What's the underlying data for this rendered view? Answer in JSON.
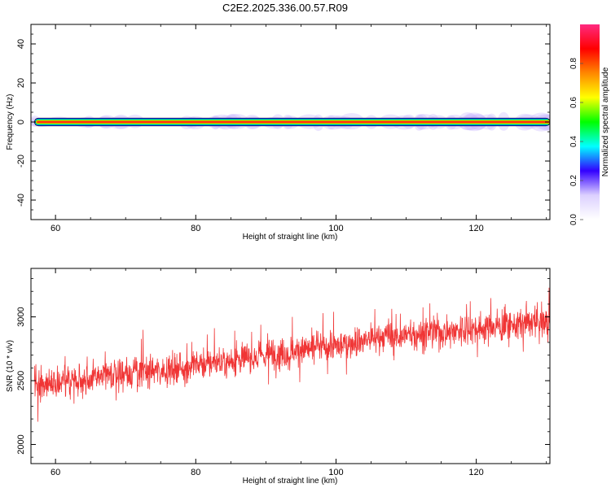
{
  "title": "C2E2.2025.336.00.57.R09",
  "chart_data": [
    {
      "type": "heatmap",
      "xlabel": "Height of straight line (km)",
      "ylabel": "Frequency (Hz)",
      "xlim": [
        56.5,
        130.5
      ],
      "ylim": [
        -50,
        50
      ],
      "xticks": [
        60,
        80,
        100,
        120
      ],
      "yticks": [
        40,
        20,
        0,
        -20,
        -40
      ],
      "band": {
        "center_hz": 0,
        "halfwidth_hz": 2,
        "start_km": 57,
        "end_km": 130.5
      },
      "colorbar": {
        "label": "Normalized spectral amplitude",
        "range": [
          0,
          1
        ],
        "ticks": [
          0.0,
          0.2,
          0.4,
          0.6,
          0.8
        ],
        "stops": [
          "#ffffff",
          "#dcd0ff",
          "#3300ff",
          "#00ffff",
          "#00ff00",
          "#ffff00",
          "#ff8800",
          "#ff0000",
          "#ff2a80"
        ]
      },
      "grid": false
    },
    {
      "type": "line",
      "xlabel": "Height of straight line (km)",
      "ylabel": "SNR (10 * v/v)",
      "xlim": [
        56.5,
        130.5
      ],
      "ylim": [
        1850,
        3380
      ],
      "xticks": [
        60,
        80,
        100,
        120
      ],
      "yticks": [
        2000,
        2500,
        3000
      ],
      "color": "#f03535",
      "grid": false,
      "trend": [
        {
          "x": 57,
          "y": 2470
        },
        {
          "x": 65,
          "y": 2520
        },
        {
          "x": 75,
          "y": 2580
        },
        {
          "x": 85,
          "y": 2660
        },
        {
          "x": 95,
          "y": 2740
        },
        {
          "x": 100,
          "y": 2770
        },
        {
          "x": 105,
          "y": 2830
        },
        {
          "x": 115,
          "y": 2880
        },
        {
          "x": 125,
          "y": 2940
        },
        {
          "x": 130.5,
          "y": 2960
        }
      ],
      "noise_sd": 110,
      "n_points": 1800
    }
  ]
}
